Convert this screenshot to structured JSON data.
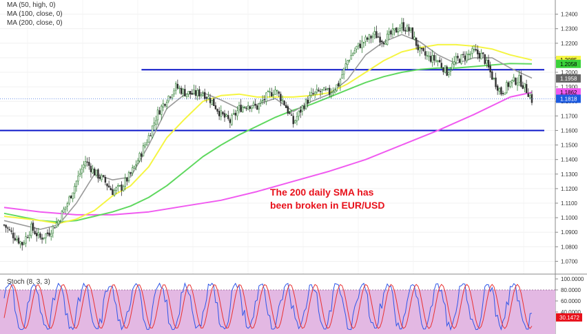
{
  "indicators": {
    "ma_labels": [
      "MA (50, high, 0)",
      "MA (100, close, 0)",
      "MA (200, close, 0)"
    ],
    "stoch_label": "Stoch (8, 3, 3)"
  },
  "annotation": "The 200 daily SMA has\nbeen broken in EUR/USD",
  "colors": {
    "up_candle": "#2e7d32",
    "down_candle": "#333333",
    "ma50": "#f5f542",
    "ma100": "#5fd85f",
    "ma200": "#f05af0",
    "ma_short": "#999999",
    "level": "#0a14c8",
    "annotation": "#e8111b",
    "stoch_bg": "#e3b8e3"
  },
  "chart_data": [
    {
      "type": "candlestick",
      "instrument": "EUR/USD",
      "ylim": [
        1.065,
        1.245
      ],
      "y_ticks": [
        "1.2400",
        "1.2300",
        "1.2200",
        "1.2100",
        "1.2000",
        "1.1900",
        "1.1800",
        "1.1700",
        "1.1600",
        "1.1500",
        "1.1400",
        "1.1300",
        "1.1200",
        "1.1100",
        "1.1000",
        "1.0900",
        "1.0800",
        "1.0700"
      ],
      "price_tags": [
        {
          "text": "1.2085",
          "value": 1.2085,
          "color": "#f5f542",
          "text_color": "#000000"
        },
        {
          "text": "1.2058",
          "value": 1.2058,
          "color": "#3ad23a",
          "text_color": "#000000"
        },
        {
          "text": "1.1958",
          "value": 1.1958,
          "color": "#666666",
          "text_color": "#ffffff"
        },
        {
          "text": "1.1862",
          "value": 1.1862,
          "color": "#f05af0",
          "text_color": "#000000"
        },
        {
          "text": "1.1818",
          "value": 1.1818,
          "color": "#1c5ae0",
          "text_color": "#ffffff"
        }
      ],
      "horizontal_levels": [
        {
          "value": 1.2018,
          "from": 0.26,
          "to": 1.0
        },
        {
          "value": 1.16,
          "from": 0.0,
          "to": 1.0
        }
      ],
      "last_price": 1.1818,
      "close_path": [
        [
          0,
          1.095
        ],
        [
          5,
          1.088
        ],
        [
          10,
          1.082
        ],
        [
          15,
          1.093
        ],
        [
          20,
          1.086
        ],
        [
          25,
          1.09
        ],
        [
          30,
          1.098
        ],
        [
          35,
          1.11
        ],
        [
          40,
          1.125
        ],
        [
          45,
          1.139
        ],
        [
          50,
          1.131
        ],
        [
          55,
          1.126
        ],
        [
          60,
          1.118
        ],
        [
          65,
          1.121
        ],
        [
          70,
          1.13
        ],
        [
          75,
          1.142
        ],
        [
          80,
          1.156
        ],
        [
          85,
          1.172
        ],
        [
          90,
          1.182
        ],
        [
          95,
          1.19
        ],
        [
          100,
          1.186
        ],
        [
          105,
          1.185
        ],
        [
          110,
          1.186
        ],
        [
          115,
          1.18
        ],
        [
          120,
          1.171
        ],
        [
          125,
          1.166
        ],
        [
          130,
          1.175
        ],
        [
          135,
          1.178
        ],
        [
          140,
          1.176
        ],
        [
          145,
          1.183
        ],
        [
          150,
          1.188
        ],
        [
          155,
          1.179
        ],
        [
          160,
          1.165
        ],
        [
          165,
          1.176
        ],
        [
          170,
          1.184
        ],
        [
          175,
          1.187
        ],
        [
          180,
          1.186
        ],
        [
          185,
          1.192
        ],
        [
          190,
          1.208
        ],
        [
          195,
          1.217
        ],
        [
          200,
          1.222
        ],
        [
          205,
          1.226
        ],
        [
          210,
          1.222
        ],
        [
          215,
          1.227
        ],
        [
          220,
          1.232
        ],
        [
          225,
          1.228
        ],
        [
          230,
          1.214
        ],
        [
          235,
          1.21
        ],
        [
          240,
          1.208
        ],
        [
          245,
          1.2
        ],
        [
          250,
          1.208
        ],
        [
          255,
          1.211
        ],
        [
          260,
          1.214
        ],
        [
          265,
          1.211
        ],
        [
          270,
          1.197
        ],
        [
          275,
          1.186
        ],
        [
          280,
          1.193
        ],
        [
          285,
          1.195
        ],
        [
          290,
          1.186
        ],
        [
          292,
          1.181
        ]
      ],
      "ma_short": [
        [
          0,
          1.098
        ],
        [
          20,
          1.092
        ],
        [
          30,
          1.095
        ],
        [
          40,
          1.11
        ],
        [
          50,
          1.13
        ],
        [
          60,
          1.126
        ],
        [
          70,
          1.128
        ],
        [
          80,
          1.15
        ],
        [
          90,
          1.175
        ],
        [
          100,
          1.185
        ],
        [
          110,
          1.186
        ],
        [
          120,
          1.181
        ],
        [
          130,
          1.175
        ],
        [
          140,
          1.178
        ],
        [
          150,
          1.182
        ],
        [
          160,
          1.173
        ],
        [
          170,
          1.18
        ],
        [
          180,
          1.185
        ],
        [
          190,
          1.195
        ],
        [
          200,
          1.212
        ],
        [
          210,
          1.221
        ],
        [
          220,
          1.226
        ],
        [
          230,
          1.221
        ],
        [
          240,
          1.212
        ],
        [
          250,
          1.206
        ],
        [
          260,
          1.21
        ],
        [
          270,
          1.21
        ],
        [
          280,
          1.203
        ],
        [
          292,
          1.196
        ]
      ],
      "ma50": [
        [
          0,
          1.101
        ],
        [
          20,
          1.098
        ],
        [
          30,
          1.096
        ],
        [
          40,
          1.099
        ],
        [
          50,
          1.105
        ],
        [
          60,
          1.115
        ],
        [
          70,
          1.122
        ],
        [
          80,
          1.135
        ],
        [
          90,
          1.155
        ],
        [
          100,
          1.168
        ],
        [
          110,
          1.18
        ],
        [
          120,
          1.184
        ],
        [
          130,
          1.185
        ],
        [
          140,
          1.183
        ],
        [
          150,
          1.183
        ],
        [
          160,
          1.183
        ],
        [
          170,
          1.184
        ],
        [
          180,
          1.186
        ],
        [
          190,
          1.192
        ],
        [
          200,
          1.2
        ],
        [
          210,
          1.208
        ],
        [
          220,
          1.214
        ],
        [
          230,
          1.217
        ],
        [
          240,
          1.219
        ],
        [
          250,
          1.219
        ],
        [
          260,
          1.218
        ],
        [
          270,
          1.216
        ],
        [
          280,
          1.212
        ],
        [
          292,
          1.2085
        ]
      ],
      "ma100": [
        [
          0,
          1.103
        ],
        [
          20,
          1.098
        ],
        [
          30,
          1.097
        ],
        [
          40,
          1.098
        ],
        [
          50,
          1.101
        ],
        [
          60,
          1.104
        ],
        [
          70,
          1.108
        ],
        [
          80,
          1.114
        ],
        [
          90,
          1.122
        ],
        [
          100,
          1.132
        ],
        [
          110,
          1.142
        ],
        [
          120,
          1.15
        ],
        [
          130,
          1.157
        ],
        [
          140,
          1.163
        ],
        [
          150,
          1.169
        ],
        [
          160,
          1.174
        ],
        [
          170,
          1.178
        ],
        [
          180,
          1.183
        ],
        [
          190,
          1.188
        ],
        [
          200,
          1.193
        ],
        [
          210,
          1.197
        ],
        [
          220,
          1.2
        ],
        [
          230,
          1.202
        ],
        [
          240,
          1.203
        ],
        [
          250,
          1.203
        ],
        [
          260,
          1.204
        ],
        [
          270,
          1.205
        ],
        [
          280,
          1.206
        ],
        [
          292,
          1.2058
        ]
      ],
      "ma200": [
        [
          0,
          1.107
        ],
        [
          20,
          1.104
        ],
        [
          40,
          1.102
        ],
        [
          60,
          1.102
        ],
        [
          80,
          1.104
        ],
        [
          100,
          1.108
        ],
        [
          120,
          1.112
        ],
        [
          140,
          1.118
        ],
        [
          160,
          1.125
        ],
        [
          180,
          1.132
        ],
        [
          200,
          1.14
        ],
        [
          220,
          1.15
        ],
        [
          240,
          1.16
        ],
        [
          260,
          1.171
        ],
        [
          280,
          1.183
        ],
        [
          292,
          1.1862
        ]
      ]
    },
    {
      "type": "line",
      "name": "Stoch (8, 3, 3)",
      "ylim": [
        0,
        100
      ],
      "y_ticks": [
        "100.0000",
        "80.0000",
        "60.0000",
        "40.0000"
      ],
      "last_value_tag": "30.1472",
      "band": [
        20,
        80
      ]
    }
  ]
}
